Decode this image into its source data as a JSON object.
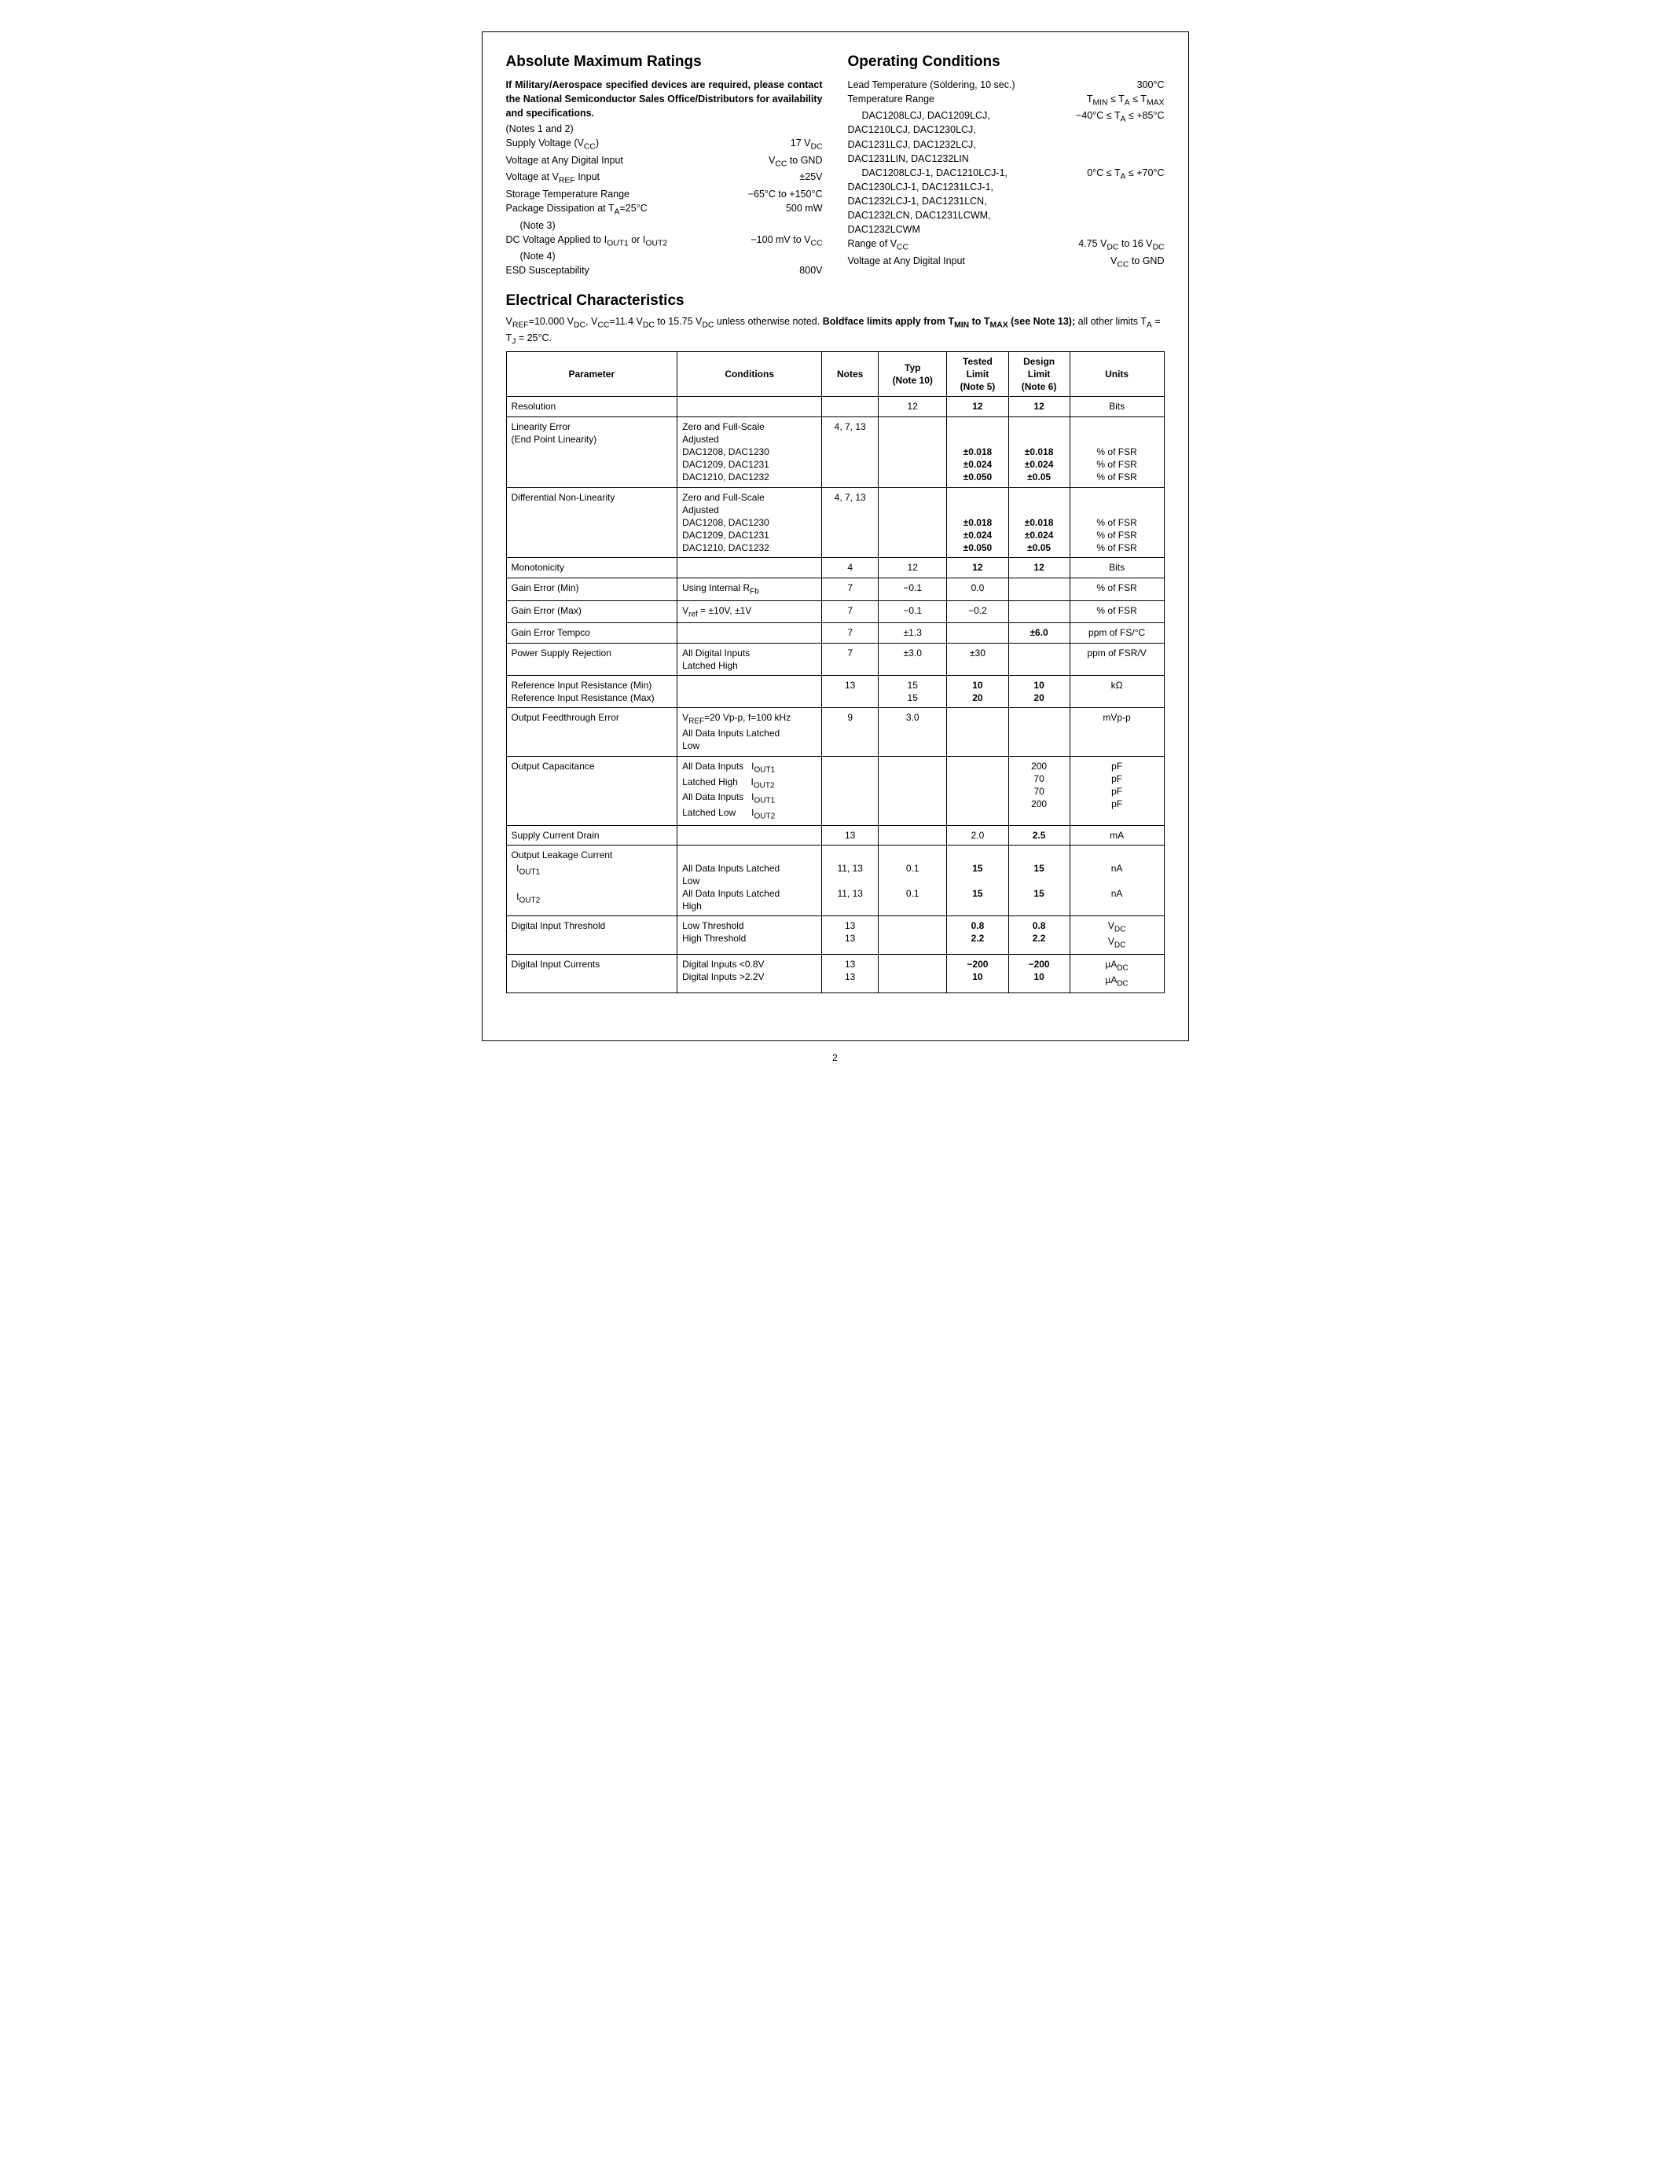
{
  "pageNumber": "2",
  "left": {
    "title": "Absolute Maximum Ratings",
    "intro": "If Military/Aerospace specified devices are required, please contact the National Semiconductor Sales Office/Distributors for availability and specifications.",
    "introNote": "(Notes 1 and 2)",
    "rows": [
      {
        "l": "Supply Voltage (V<sub>CC</sub>)",
        "r": "17 V<sub>DC</sub>"
      },
      {
        "l": "Voltage at Any Digital Input",
        "r": "V<sub>CC</sub> to GND"
      },
      {
        "l": "Voltage at V<sub>REF</sub> Input",
        "r": "±25V"
      },
      {
        "l": "Storage Temperature Range",
        "r": "−65°C to +150°C"
      },
      {
        "l": "Package Dissipation at T<sub>A</sub>=25°C<br><span class='indent'>(Note 3)</span>",
        "r": "500 mW"
      },
      {
        "l": "DC Voltage Applied to I<sub>OUT1</sub> or I<sub>OUT2</sub><br><span class='indent'>(Note 4)</span>",
        "r": "−100 mV to V<sub>CC</sub>"
      },
      {
        "l": "ESD Susceptability",
        "r": "800V"
      }
    ]
  },
  "right": {
    "title": "Operating Conditions",
    "rows": [
      {
        "l": "Lead Temperature (Soldering, 10 sec.)",
        "r": "300°C"
      },
      {
        "l": "Temperature Range",
        "r": "T<sub>MIN</sub> ≤ T<sub>A</sub> ≤ T<sub>MAX</sub>"
      },
      {
        "l": "<span class='indent'>DAC1208LCJ, DAC1209LCJ,<br>DAC1210LCJ, DAC1230LCJ,<br>DAC1231LCJ, DAC1232LCJ,<br>DAC1231LIN, DAC1232LIN</span>",
        "r": "−40°C ≤ T<sub>A</sub> ≤ +85°C"
      },
      {
        "l": "<span class='indent'>DAC1208LCJ-1, DAC1210LCJ-1,<br>DAC1230LCJ-1, DAC1231LCJ-1,<br>DAC1232LCJ-1, DAC1231LCN,<br>DAC1232LCN, DAC1231LCWM,<br>DAC1232LCWM</span>",
        "r": "0°C ≤ T<sub>A</sub> ≤ +70°C"
      },
      {
        "l": "Range of V<sub>CC</sub>",
        "r": "4.75 V<sub>DC</sub> to 16 V<sub>DC</sub>"
      },
      {
        "l": "Voltage at Any Digital Input",
        "r": "V<sub>CC</sub> to GND"
      }
    ]
  },
  "ec": {
    "title": "Electrical Characteristics",
    "note": "V<sub>REF</sub>=10.000 V<sub>DC</sub>, V<sub>CC</sub>=11.4 V<sub>DC</sub> to 15.75 V<sub>DC</sub> unless otherwise noted. <b>Boldface limits apply from T<sub>MIN</sub> to T<sub>MAX</sub> (see Note 13);</b> all other limits T<sub>A</sub> = T<sub>J</sub> = 25°C.",
    "headers": [
      "Parameter",
      "Conditions",
      "Notes",
      "Typ<br>(Note 10)",
      "Tested<br>Limit<br>(Note 5)",
      "Design<br>Limit<br>(Note 6)",
      "Units"
    ],
    "rows": [
      {
        "sep": true,
        "cells": [
          "Resolution",
          "",
          "",
          "12",
          "<b>12</b>",
          "<b>12</b>",
          "Bits"
        ]
      },
      {
        "sep": true,
        "cells": [
          "Linearity Error<br>(End Point Linearity)",
          "Zero and Full-Scale<br>Adjusted<br>DAC1208, DAC1230<br>DAC1209, DAC1231<br>DAC1210, DAC1232",
          "4, 7, 13",
          "",
          "<br><br><b>±0.018</b><br><b>±0.024</b><br><b>±0.050</b>",
          "<br><br><b>±0.018</b><br><b>±0.024</b><br><b>±0.05</b>",
          "<br><br>% of FSR<br>% of FSR<br>% of FSR"
        ]
      },
      {
        "sep": true,
        "cells": [
          "Differential Non-Linearity",
          "Zero and Full-Scale<br>Adjusted<br>DAC1208, DAC1230<br>DAC1209, DAC1231<br>DAC1210, DAC1232",
          "4, 7, 13",
          "",
          "<br><br><b>±0.018</b><br><b>±0.024</b><br><b>±0.050</b>",
          "<br><br><b>±0.018</b><br><b>±0.024</b><br><b>±0.05</b>",
          "<br><br>% of FSR<br>% of FSR<br>% of FSR"
        ]
      },
      {
        "sep": true,
        "cells": [
          "Monotonicity",
          "",
          "4",
          "12",
          "<b>12</b>",
          "<b>12</b>",
          "Bits"
        ]
      },
      {
        "sep": true,
        "cells": [
          "Gain Error (Min)",
          "Using Internal R<sub>Fb</sub>",
          "7",
          "−0.1",
          "0.0",
          "",
          "% of FSR"
        ],
        "nobot": true
      },
      {
        "sep": true,
        "cells": [
          "Gain Error (Max)",
          "V<sub>ref</sub> = ±10V, ±1V",
          "7",
          "−0.1",
          "−0.2",
          "",
          "% of FSR"
        ]
      },
      {
        "sep": true,
        "cells": [
          "Gain Error Tempco",
          "",
          "7",
          "±1.3",
          "",
          "<b>±6.0</b>",
          "ppm of FS/°C"
        ]
      },
      {
        "sep": true,
        "cells": [
          "Power Supply Rejection",
          "All Digital Inputs<br>Latched High",
          "7",
          "±3.0",
          "±30",
          "",
          "ppm of FSR/V"
        ]
      },
      {
        "sep": true,
        "cells": [
          "Reference Input Resistance (Min)<br>Reference Input Resistance (Max)",
          "",
          "13",
          "15<br>15",
          "<b>10</b><br><b>20</b>",
          "<b>10</b><br><b>20</b>",
          "kΩ"
        ]
      },
      {
        "sep": true,
        "cells": [
          "Output Feedthrough Error",
          "V<sub>REF</sub>=20 Vp-p, f=100 kHz<br>All Data Inputs Latched<br>Low",
          "9",
          "3.0",
          "",
          "",
          "mVp-p"
        ]
      },
      {
        "sep": true,
        "cells": [
          "Output Capacitance",
          "All Data Inputs&nbsp;&nbsp;&nbsp;I<sub>OUT1</sub><br>Latched High&nbsp;&nbsp;&nbsp;&nbsp;&nbsp;I<sub>OUT2</sub><br>All Data Inputs&nbsp;&nbsp;&nbsp;I<sub>OUT1</sub><br>Latched Low&nbsp;&nbsp;&nbsp;&nbsp;&nbsp;&nbsp;I<sub>OUT2</sub>",
          "",
          "",
          "",
          "200<br>70<br>70<br>200",
          "pF<br>pF<br>pF<br>pF"
        ]
      },
      {
        "sep": true,
        "cells": [
          "Supply Current Drain",
          "",
          "13",
          "",
          "2.0",
          "<b>2.5</b>",
          "mA"
        ]
      },
      {
        "sep": true,
        "cells": [
          "Output Leakage Current<br>&nbsp;&nbsp;I<sub>OUT1</sub><br><br>&nbsp;&nbsp;I<sub>OUT2</sub>",
          "<br>All Data Inputs Latched<br>Low<br>All Data Inputs Latched<br>High",
          "<br>11, 13<br><br>11, 13",
          "<br>0.1<br><br>0.1",
          "<br><b>15</b><br><br><b>15</b>",
          "<br><b>15</b><br><br><b>15</b>",
          "<br>nA<br><br>nA"
        ]
      },
      {
        "sep": true,
        "cells": [
          "Digital Input Threshold",
          "Low Threshold<br>High Threshold",
          "13<br>13",
          "",
          "<b>0.8</b><br><b>2.2</b>",
          "<b>0.8</b><br><b>2.2</b>",
          "V<sub>DC</sub><br>V<sub>DC</sub>"
        ]
      },
      {
        "sep": true,
        "cells": [
          "Digital Input Currents",
          "Digital Inputs &lt;0.8V<br>Digital Inputs &gt;2.2V",
          "13<br>13",
          "",
          "<b>−200</b><br><b>10</b>",
          "<b>−200</b><br><b>10</b>",
          "µA<sub>DC</sub><br>µA<sub>DC</sub>"
        ]
      }
    ]
  }
}
